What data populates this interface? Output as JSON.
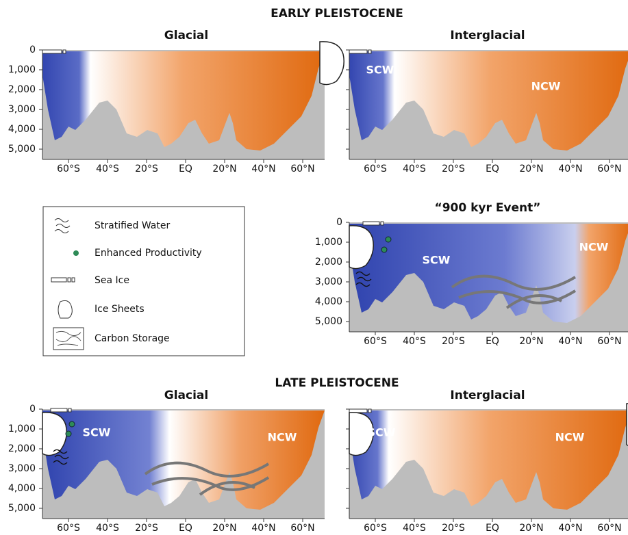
{
  "sections": [
    {
      "title": "EARLY PLEISTOCENE"
    },
    {
      "title": "LATE PLEISTOCENE"
    }
  ],
  "depth_labels": [
    "0",
    "1,000",
    "2,000",
    "3,000",
    "4,000",
    "5,000"
  ],
  "latitude_labels": [
    "60°S",
    "40°S",
    "20°S",
    "EQ",
    "20°N",
    "40°N",
    "60°N"
  ],
  "panels": [
    {
      "title": "Glacial",
      "water_labels": []
    },
    {
      "title": "Interglacial",
      "water_labels": [
        "SCW",
        "NCW"
      ]
    },
    {
      "title": "“900 kyr Event”",
      "water_labels": [
        "SCW",
        "NCW"
      ]
    },
    {
      "title": "Glacial",
      "water_labels": [
        "SCW",
        "NCW"
      ]
    },
    {
      "title": "Interglacial",
      "water_labels": [
        "SCW",
        "NCW"
      ]
    }
  ],
  "legend": [
    "Stratified Water",
    "Enhanced Productivity",
    "Sea Ice",
    "Ice Sheets",
    "Carbon Storage"
  ]
}
